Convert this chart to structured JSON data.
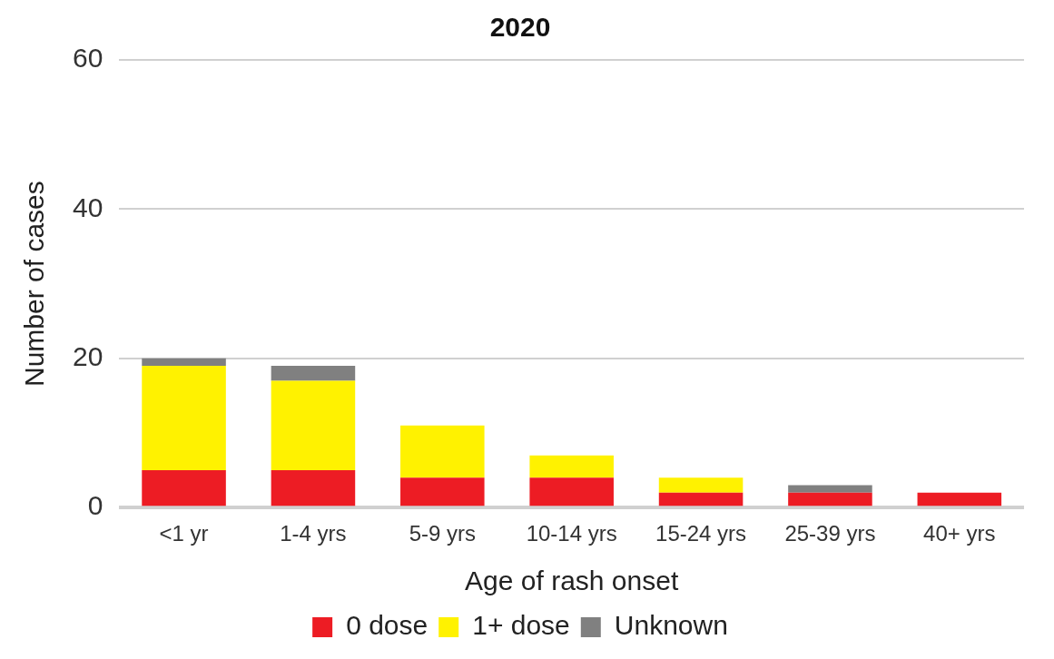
{
  "chart_data": {
    "type": "bar",
    "title": "2020",
    "xlabel": "Age of rash onset",
    "ylabel": "Number of cases",
    "categories": [
      "<1 yr",
      "1-4 yrs",
      "5-9 yrs",
      "10-14 yrs",
      "15-24 yrs",
      "25-39 yrs",
      "40+ yrs"
    ],
    "series": [
      {
        "name": "0 dose",
        "color": "#ed1c24",
        "values": [
          5,
          5,
          4,
          4,
          2,
          2,
          2
        ]
      },
      {
        "name": "1+ dose",
        "color": "#fff200",
        "values": [
          14,
          12,
          7,
          3,
          2,
          0,
          0
        ]
      },
      {
        "name": "Unknown",
        "color": "#808080",
        "values": [
          1,
          2,
          0,
          0,
          0,
          1,
          0
        ]
      }
    ],
    "stacked": true,
    "ylim": [
      0,
      60
    ],
    "yticks": [
      0,
      20,
      40,
      60
    ],
    "grid": "y",
    "legend": "bottom"
  }
}
